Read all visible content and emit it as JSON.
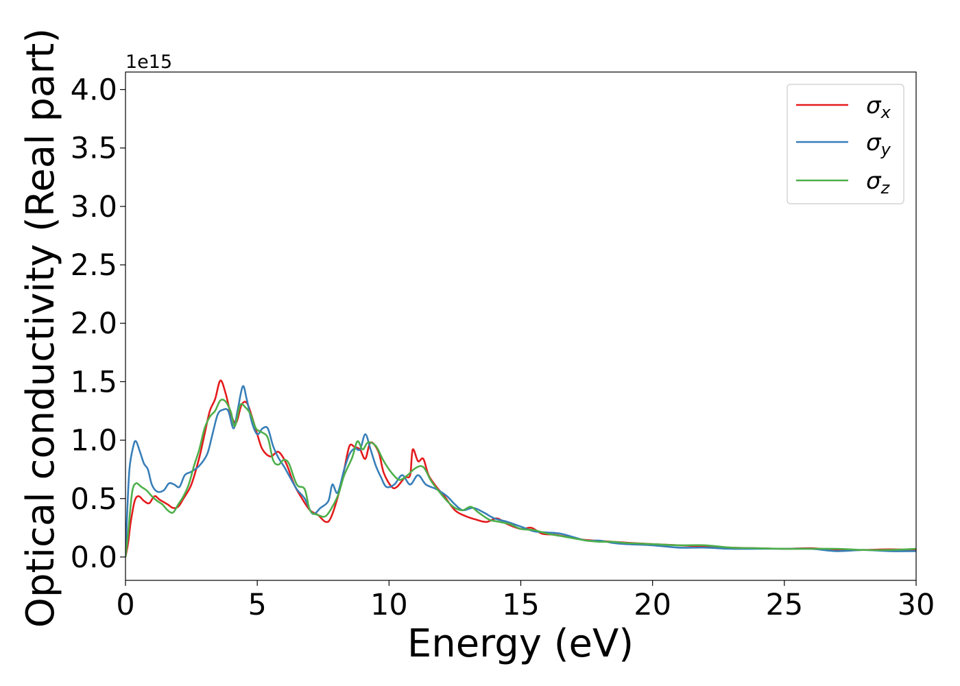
{
  "chart_data": {
    "type": "line",
    "xlabel": "Energy (eV)",
    "ylabel": "Optical conductivity (Real part)",
    "y_offset_text": "1e15",
    "xlim": [
      0,
      30
    ],
    "ylim": [
      -0.2,
      4.15
    ],
    "x_ticks": [
      0,
      5,
      10,
      15,
      20,
      25,
      30
    ],
    "x_tick_labels": [
      "0",
      "5",
      "10",
      "15",
      "20",
      "25",
      "30"
    ],
    "y_ticks": [
      0.0,
      0.5,
      1.0,
      1.5,
      2.0,
      2.5,
      3.0,
      3.5,
      4.0
    ],
    "y_tick_labels": [
      "0.0",
      "0.5",
      "1.0",
      "1.5",
      "2.0",
      "2.5",
      "3.0",
      "3.5",
      "4.0"
    ],
    "grid": false,
    "legend_position": "top-right",
    "series": [
      {
        "name": "σx",
        "symbol": "σ",
        "subscript": "x",
        "color": "#e41a1c",
        "points": [
          [
            0,
            0.0
          ],
          [
            0.1,
            0.12
          ],
          [
            0.2,
            0.3
          ],
          [
            0.35,
            0.48
          ],
          [
            0.5,
            0.52
          ],
          [
            0.7,
            0.48
          ],
          [
            0.9,
            0.46
          ],
          [
            1.1,
            0.52
          ],
          [
            1.3,
            0.49
          ],
          [
            1.6,
            0.45
          ],
          [
            1.8,
            0.42
          ],
          [
            2.0,
            0.43
          ],
          [
            2.2,
            0.5
          ],
          [
            2.5,
            0.62
          ],
          [
            2.8,
            0.85
          ],
          [
            3.0,
            1.05
          ],
          [
            3.2,
            1.25
          ],
          [
            3.4,
            1.35
          ],
          [
            3.6,
            1.51
          ],
          [
            3.8,
            1.4
          ],
          [
            4.0,
            1.22
          ],
          [
            4.2,
            1.15
          ],
          [
            4.4,
            1.3
          ],
          [
            4.6,
            1.32
          ],
          [
            4.8,
            1.2
          ],
          [
            5.0,
            1.05
          ],
          [
            5.2,
            0.92
          ],
          [
            5.5,
            0.86
          ],
          [
            5.8,
            0.9
          ],
          [
            6.1,
            0.8
          ],
          [
            6.4,
            0.62
          ],
          [
            6.7,
            0.5
          ],
          [
            7.0,
            0.4
          ],
          [
            7.3,
            0.36
          ],
          [
            7.6,
            0.3
          ],
          [
            7.8,
            0.34
          ],
          [
            8.1,
            0.55
          ],
          [
            8.3,
            0.75
          ],
          [
            8.5,
            0.95
          ],
          [
            8.7,
            0.94
          ],
          [
            8.9,
            0.92
          ],
          [
            9.1,
            0.84
          ],
          [
            9.3,
            0.98
          ],
          [
            9.6,
            0.9
          ],
          [
            9.8,
            0.72
          ],
          [
            10.1,
            0.6
          ],
          [
            10.3,
            0.6
          ],
          [
            10.6,
            0.68
          ],
          [
            10.8,
            0.7
          ],
          [
            10.9,
            0.92
          ],
          [
            11.1,
            0.82
          ],
          [
            11.3,
            0.84
          ],
          [
            11.5,
            0.7
          ],
          [
            11.8,
            0.6
          ],
          [
            12.1,
            0.52
          ],
          [
            12.5,
            0.4
          ],
          [
            12.9,
            0.35
          ],
          [
            13.3,
            0.32
          ],
          [
            13.7,
            0.3
          ],
          [
            14.1,
            0.33
          ],
          [
            14.5,
            0.28
          ],
          [
            15.0,
            0.24
          ],
          [
            15.4,
            0.25
          ],
          [
            15.8,
            0.2
          ],
          [
            16.3,
            0.19
          ],
          [
            16.8,
            0.17
          ],
          [
            17.3,
            0.15
          ],
          [
            17.8,
            0.14
          ],
          [
            18.5,
            0.13
          ],
          [
            19.2,
            0.12
          ],
          [
            20.0,
            0.11
          ],
          [
            21.0,
            0.1
          ],
          [
            22.0,
            0.09
          ],
          [
            23.0,
            0.08
          ],
          [
            24.0,
            0.075
          ],
          [
            25.0,
            0.07
          ],
          [
            26.0,
            0.075
          ],
          [
            27.0,
            0.06
          ],
          [
            28.0,
            0.06
          ],
          [
            29.0,
            0.065
          ],
          [
            30.0,
            0.06
          ]
        ]
      },
      {
        "name": "σy",
        "symbol": "σ",
        "subscript": "y",
        "color": "#377eb8",
        "points": [
          [
            0,
            0.0
          ],
          [
            0.05,
            0.3
          ],
          [
            0.15,
            0.75
          ],
          [
            0.3,
            0.95
          ],
          [
            0.4,
            0.99
          ],
          [
            0.55,
            0.9
          ],
          [
            0.7,
            0.8
          ],
          [
            0.85,
            0.75
          ],
          [
            1.0,
            0.62
          ],
          [
            1.2,
            0.56
          ],
          [
            1.45,
            0.57
          ],
          [
            1.65,
            0.63
          ],
          [
            1.85,
            0.62
          ],
          [
            2.05,
            0.6
          ],
          [
            2.25,
            0.7
          ],
          [
            2.5,
            0.73
          ],
          [
            2.8,
            0.78
          ],
          [
            3.1,
            0.88
          ],
          [
            3.3,
            1.05
          ],
          [
            3.5,
            1.22
          ],
          [
            3.7,
            1.26
          ],
          [
            3.9,
            1.25
          ],
          [
            4.1,
            1.1
          ],
          [
            4.25,
            1.25
          ],
          [
            4.45,
            1.46
          ],
          [
            4.6,
            1.35
          ],
          [
            4.8,
            1.15
          ],
          [
            5.0,
            1.05
          ],
          [
            5.2,
            1.1
          ],
          [
            5.4,
            1.1
          ],
          [
            5.6,
            0.95
          ],
          [
            5.8,
            0.85
          ],
          [
            6.0,
            0.78
          ],
          [
            6.2,
            0.7
          ],
          [
            6.5,
            0.58
          ],
          [
            6.8,
            0.5
          ],
          [
            7.1,
            0.37
          ],
          [
            7.4,
            0.42
          ],
          [
            7.7,
            0.48
          ],
          [
            7.85,
            0.62
          ],
          [
            8.05,
            0.55
          ],
          [
            8.3,
            0.75
          ],
          [
            8.5,
            0.88
          ],
          [
            8.7,
            0.93
          ],
          [
            8.9,
            0.92
          ],
          [
            9.1,
            1.05
          ],
          [
            9.3,
            0.92
          ],
          [
            9.5,
            0.78
          ],
          [
            9.7,
            0.68
          ],
          [
            9.9,
            0.6
          ],
          [
            10.2,
            0.62
          ],
          [
            10.5,
            0.7
          ],
          [
            10.8,
            0.62
          ],
          [
            11.1,
            0.7
          ],
          [
            11.4,
            0.62
          ],
          [
            11.8,
            0.58
          ],
          [
            12.2,
            0.52
          ],
          [
            12.5,
            0.45
          ],
          [
            12.8,
            0.4
          ],
          [
            13.2,
            0.42
          ],
          [
            13.6,
            0.38
          ],
          [
            14.0,
            0.33
          ],
          [
            14.5,
            0.3
          ],
          [
            15.0,
            0.26
          ],
          [
            15.5,
            0.22
          ],
          [
            16.0,
            0.21
          ],
          [
            16.5,
            0.2
          ],
          [
            17.0,
            0.17
          ],
          [
            17.5,
            0.14
          ],
          [
            18.0,
            0.14
          ],
          [
            18.5,
            0.12
          ],
          [
            19.0,
            0.11
          ],
          [
            20.0,
            0.1
          ],
          [
            21.0,
            0.08
          ],
          [
            22.0,
            0.08
          ],
          [
            23.0,
            0.07
          ],
          [
            24.0,
            0.07
          ],
          [
            25.0,
            0.07
          ],
          [
            26.0,
            0.07
          ],
          [
            27.0,
            0.05
          ],
          [
            28.0,
            0.06
          ],
          [
            29.0,
            0.05
          ],
          [
            30.0,
            0.05
          ]
        ]
      },
      {
        "name": "σz",
        "symbol": "σ",
        "subscript": "z",
        "color": "#4daf4a",
        "points": [
          [
            0,
            0.0
          ],
          [
            0.1,
            0.2
          ],
          [
            0.25,
            0.55
          ],
          [
            0.4,
            0.63
          ],
          [
            0.6,
            0.6
          ],
          [
            0.8,
            0.57
          ],
          [
            1.0,
            0.52
          ],
          [
            1.2,
            0.48
          ],
          [
            1.4,
            0.45
          ],
          [
            1.6,
            0.4
          ],
          [
            1.8,
            0.38
          ],
          [
            2.0,
            0.45
          ],
          [
            2.2,
            0.52
          ],
          [
            2.4,
            0.62
          ],
          [
            2.6,
            0.78
          ],
          [
            2.8,
            0.92
          ],
          [
            3.0,
            1.1
          ],
          [
            3.2,
            1.2
          ],
          [
            3.4,
            1.25
          ],
          [
            3.6,
            1.34
          ],
          [
            3.8,
            1.33
          ],
          [
            4.0,
            1.24
          ],
          [
            4.15,
            1.12
          ],
          [
            4.35,
            1.3
          ],
          [
            4.55,
            1.28
          ],
          [
            4.75,
            1.22
          ],
          [
            4.95,
            1.1
          ],
          [
            5.15,
            1.07
          ],
          [
            5.4,
            1.02
          ],
          [
            5.6,
            0.83
          ],
          [
            5.8,
            0.79
          ],
          [
            6.0,
            0.83
          ],
          [
            6.2,
            0.8
          ],
          [
            6.5,
            0.62
          ],
          [
            6.8,
            0.58
          ],
          [
            7.0,
            0.4
          ],
          [
            7.3,
            0.36
          ],
          [
            7.6,
            0.35
          ],
          [
            7.9,
            0.45
          ],
          [
            8.1,
            0.55
          ],
          [
            8.3,
            0.7
          ],
          [
            8.6,
            0.85
          ],
          [
            8.8,
            0.99
          ],
          [
            9.0,
            0.92
          ],
          [
            9.2,
            0.98
          ],
          [
            9.5,
            0.95
          ],
          [
            9.8,
            0.82
          ],
          [
            10.1,
            0.72
          ],
          [
            10.4,
            0.66
          ],
          [
            10.7,
            0.7
          ],
          [
            11.0,
            0.76
          ],
          [
            11.3,
            0.77
          ],
          [
            11.6,
            0.65
          ],
          [
            11.9,
            0.56
          ],
          [
            12.2,
            0.48
          ],
          [
            12.5,
            0.42
          ],
          [
            12.8,
            0.4
          ],
          [
            13.1,
            0.43
          ],
          [
            13.4,
            0.38
          ],
          [
            13.8,
            0.32
          ],
          [
            14.2,
            0.3
          ],
          [
            14.6,
            0.28
          ],
          [
            15.0,
            0.24
          ],
          [
            15.5,
            0.23
          ],
          [
            16.0,
            0.2
          ],
          [
            16.5,
            0.18
          ],
          [
            17.0,
            0.16
          ],
          [
            17.5,
            0.14
          ],
          [
            18.0,
            0.13
          ],
          [
            18.5,
            0.13
          ],
          [
            19.0,
            0.12
          ],
          [
            20.0,
            0.11
          ],
          [
            21.0,
            0.1
          ],
          [
            22.0,
            0.1
          ],
          [
            23.0,
            0.08
          ],
          [
            24.0,
            0.075
          ],
          [
            25.0,
            0.07
          ],
          [
            26.0,
            0.07
          ],
          [
            27.0,
            0.07
          ],
          [
            28.0,
            0.06
          ],
          [
            29.0,
            0.06
          ],
          [
            30.0,
            0.07
          ]
        ]
      }
    ]
  }
}
